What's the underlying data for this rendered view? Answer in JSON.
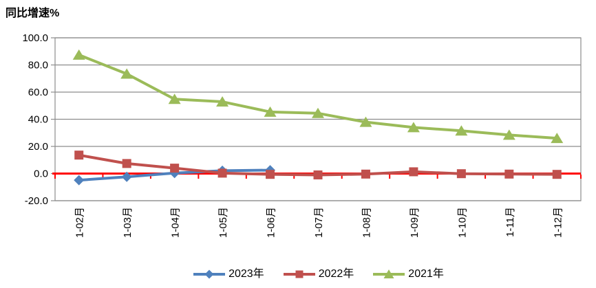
{
  "title": "同比增速%",
  "colors": {
    "series_2023": "#4F81BD",
    "series_2022": "#C0504D",
    "series_2021": "#9BBB59",
    "zero_line": "#FF0000",
    "grid": "#8C8C8C",
    "text": "#000000",
    "background": "#FFFFFF"
  },
  "chart_data": {
    "type": "line",
    "title": "同比增速%",
    "ylabel": "同比增速%",
    "categories": [
      "1-02月",
      "1-03月",
      "1-04月",
      "1-05月",
      "1-06月",
      "1-07月",
      "1-08月",
      "1-09月",
      "1-10月",
      "1-11月",
      "1-12月"
    ],
    "series": [
      {
        "name": "2023年",
        "color": "#4F81BD",
        "marker": "diamond",
        "values": [
          -4.9,
          -2.4,
          0.4,
          2.1,
          2.5,
          null,
          null,
          null,
          null,
          null,
          null
        ]
      },
      {
        "name": "2022年",
        "color": "#C0504D",
        "marker": "square",
        "values": [
          13.6,
          7.4,
          4.0,
          0.3,
          -0.6,
          -1.0,
          -0.4,
          1.3,
          -0.1,
          -0.4,
          -0.6
        ]
      },
      {
        "name": "2021年",
        "color": "#9BBB59",
        "marker": "triangle",
        "values": [
          87.4,
          73.4,
          54.8,
          52.9,
          45.4,
          44.4,
          37.9,
          34.0,
          31.5,
          28.4,
          26.0
        ]
      }
    ],
    "ylim": [
      -20,
      100
    ],
    "ytick_interval": 20,
    "ytick_labels": [
      "100.0",
      "80.0",
      "60.0",
      "40.0",
      "20.0",
      "0.0",
      "-20.0"
    ],
    "grid": true,
    "legend_position": "bottom",
    "zero_axis_color": "#FF0000",
    "x_labels_rotated_90": true
  }
}
